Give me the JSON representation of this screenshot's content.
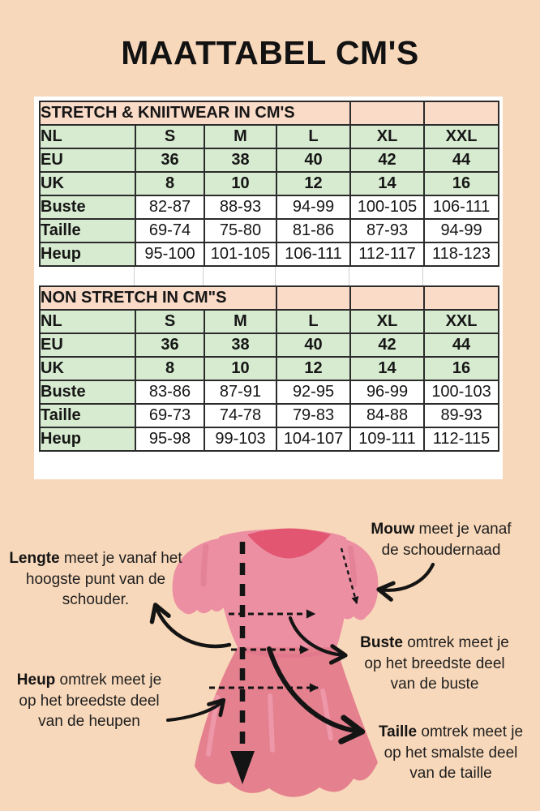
{
  "page": {
    "title": "MAATTABEL CM'S"
  },
  "colors": {
    "background": "#f8d8ba",
    "table_header_bg": "#fadbc8",
    "table_green_bg": "#d7ebd0",
    "table_border": "#2b2b2b",
    "dress_pink": "#ec8fa3",
    "dress_skirt_pink": "#e5808f",
    "dress_dark_pink": "#e25672",
    "ink": "#141414"
  },
  "size_tables": [
    {
      "title": "STRETCH & KNIITWEAR IN CM'S",
      "title_colspan": 4,
      "size_rows": [
        {
          "label": "NL",
          "values": [
            "S",
            "M",
            "L",
            "XL",
            "XXL"
          ]
        },
        {
          "label": "EU",
          "values": [
            "36",
            "38",
            "40",
            "42",
            "44"
          ]
        },
        {
          "label": "UK",
          "values": [
            "8",
            "10",
            "12",
            "14",
            "16"
          ]
        }
      ],
      "measure_rows": [
        {
          "label": "Buste",
          "values": [
            "82-87",
            "88-93",
            "94-99",
            "100-105",
            "106-111"
          ]
        },
        {
          "label": "Taille",
          "values": [
            "69-74",
            "75-80",
            "81-86",
            "87-93",
            "94-99"
          ]
        },
        {
          "label": "Heup",
          "values": [
            "95-100",
            "101-105",
            "106-111",
            "112-117",
            "118-123"
          ]
        }
      ]
    },
    {
      "title": "NON STRETCH IN CM\"S",
      "title_colspan": 3,
      "size_rows": [
        {
          "label": "NL",
          "values": [
            "S",
            "M",
            "L",
            "XL",
            "XXL"
          ]
        },
        {
          "label": "EU",
          "values": [
            "36",
            "38",
            "40",
            "42",
            "44"
          ]
        },
        {
          "label": "UK",
          "values": [
            "8",
            "10",
            "12",
            "14",
            "16"
          ]
        }
      ],
      "measure_rows": [
        {
          "label": "Buste",
          "values": [
            "83-86",
            "87-91",
            "92-95",
            "96-99",
            "100-103"
          ]
        },
        {
          "label": "Taille",
          "values": [
            "69-73",
            "74-78",
            "79-83",
            "84-88",
            "89-93"
          ]
        },
        {
          "label": "Heup",
          "values": [
            "95-98",
            "99-103",
            "104-107",
            "109-111",
            "112-115"
          ]
        }
      ]
    }
  ],
  "diagram": {
    "lengte": {
      "lead": "Lengte",
      "text": " meet je vanaf het hoogste punt van de schouder."
    },
    "mouw": {
      "lead": "Mouw",
      "text": " meet je vanaf de schoudernaad"
    },
    "buste": {
      "lead": "Buste",
      "text": " omtrek meet je op het breedste deel van de buste"
    },
    "taille": {
      "lead": "Taille",
      "text": " omtrek meet je op het smalste deel van de taille"
    },
    "heup": {
      "lead": "Heup",
      "text": " omtrek meet je op het breedste deel van de heupen"
    }
  }
}
